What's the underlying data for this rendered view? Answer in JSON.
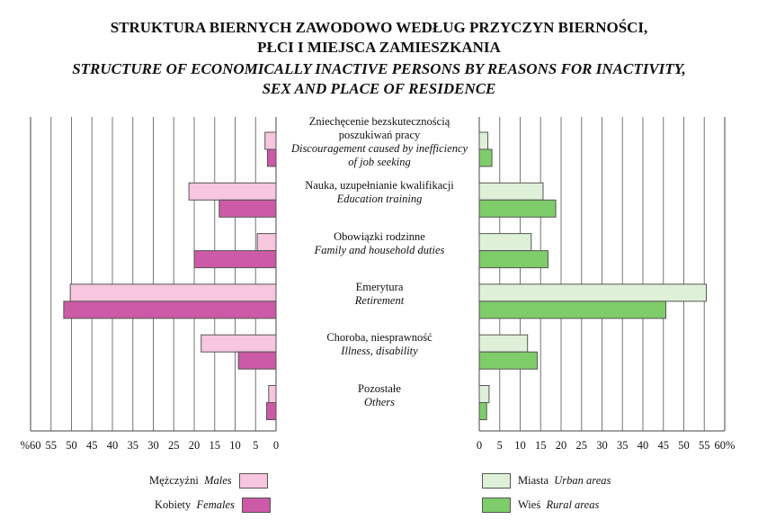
{
  "title_pl": "STRUKTURA BIERNYCH ZAWODOWO WEDŁUG PRZYCZYN BIERNOŚCI, PŁCI I MIEJSCA ZAMIESZKANIA",
  "title_pl_line1": "STRUKTURA BIERNYCH ZAWODOWO WEDŁUG PRZYCZYN BIERNOŚCI,",
  "title_pl_line2": "PŁCI I MIEJSCA ZAMIESZKANIA",
  "title_en_line1": "STRUCTURE OF ECONOMICALLY INACTIVE PERSONS BY  REASONS FOR INACTIVITY,",
  "title_en_line2": "SEX AND PLACE OF RESIDENCE",
  "chart_data": [
    {
      "type": "bar",
      "orientation": "horizontal",
      "direction": "right-to-left",
      "xlim": [
        0,
        60
      ],
      "tick_labels": [
        "%60",
        "55",
        "50",
        "45",
        "40",
        "35",
        "30",
        "25",
        "20",
        "15",
        "10",
        "5",
        "0"
      ],
      "categories": [
        "Zniechęcenie bezskutecznością poszukiwań pracy / Discouragement caused by inefficiency of job seeking",
        "Nauka, uzupełnianie kwalifikacji / Education training",
        "Obowiązki rodzinne / Family and household duties",
        "Emerytura / Retirement",
        "Choroba, niesprawność / Illness, disability",
        "Pozostałe / Others"
      ],
      "grid": true,
      "series": [
        {
          "name": "Mężczyźni Males",
          "color": "#f7c6df",
          "values": [
            2.7,
            21.3,
            4.6,
            50.3,
            18.3,
            1.8
          ]
        },
        {
          "name": "Kobiety Females",
          "color": "#cc5aa6",
          "values": [
            2.1,
            13.9,
            20.0,
            51.9,
            9.2,
            2.3
          ]
        }
      ]
    },
    {
      "type": "bar",
      "orientation": "horizontal",
      "xlim": [
        0,
        60
      ],
      "tick_labels": [
        "0",
        "5",
        "10",
        "15",
        "20",
        "25",
        "30",
        "35",
        "40",
        "45",
        "50",
        "55",
        "60%"
      ],
      "grid": true,
      "series": [
        {
          "name": "Miasta Urban areas",
          "color": "#dff0d8",
          "values": [
            2.1,
            15.6,
            12.7,
            55.5,
            11.8,
            2.4
          ]
        },
        {
          "name": "Wieś Rural areas",
          "color": "#7fcc6a",
          "values": [
            3.1,
            18.7,
            16.8,
            45.6,
            14.2,
            1.8
          ]
        }
      ]
    }
  ],
  "categories": [
    {
      "pl": [
        "Zniechęcenie bezskutecznością",
        "poszukiwań pracy"
      ],
      "en": [
        "Discouragement caused by inefficiency",
        "of job seeking"
      ]
    },
    {
      "pl": [
        "Nauka, uzupełnianie kwalifikacji"
      ],
      "en": [
        "Education training"
      ]
    },
    {
      "pl": [
        "Obowiązki rodzinne"
      ],
      "en": [
        "Family and household duties"
      ]
    },
    {
      "pl": [
        "Emerytura"
      ],
      "en": [
        "Retirement"
      ]
    },
    {
      "pl": [
        "Choroba, niesprawność"
      ],
      "en": [
        "Illness, disability"
      ]
    },
    {
      "pl": [
        "Pozostałe"
      ],
      "en": [
        "Others"
      ]
    }
  ],
  "legend": {
    "males_pl": "Mężczyźni",
    "males_en": "Males",
    "females_pl": "Kobiety",
    "females_en": "Females",
    "urban_pl": "Miasta",
    "urban_en": "Urban areas",
    "rural_pl": "Wieś",
    "rural_en": "Rural areas"
  }
}
